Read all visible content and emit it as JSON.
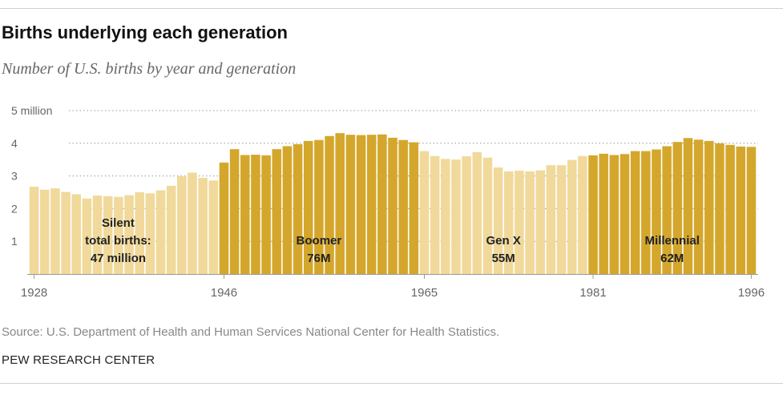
{
  "header": {
    "title": "Births underlying each generation",
    "subtitle": "Number of U.S. births by year and generation"
  },
  "footer": {
    "source": "Source: U.S. Department of Health and Human Services National Center for Health Statistics.",
    "org": "PEW RESEARCH CENTER"
  },
  "chart_data": {
    "type": "bar",
    "title": "Births underlying each generation",
    "subtitle": "Number of U.S. births by year and generation",
    "ylim": [
      0,
      5
    ],
    "y_ticks": [
      {
        "value": 1,
        "label": "1"
      },
      {
        "value": 2,
        "label": "2"
      },
      {
        "value": 3,
        "label": "3"
      },
      {
        "value": 4,
        "label": "4"
      },
      {
        "value": 5,
        "label": "5 million"
      }
    ],
    "x_tick_years": [
      {
        "year": 1928,
        "label": "1928"
      },
      {
        "year": 1946,
        "label": "1946"
      },
      {
        "year": 1965,
        "label": "1965"
      },
      {
        "year": 1981,
        "label": "1981"
      },
      {
        "year": 1996,
        "label": "1996"
      }
    ],
    "grid": "horizontal dotted",
    "colors": {
      "light": "#f0d99a",
      "dark": "#d4a72c",
      "axis": "#999999",
      "grid": "#999999"
    },
    "generations": [
      {
        "name": "Silent",
        "start": 1928,
        "end": 1945,
        "shade": "light",
        "label_lines": [
          "Silent",
          "total births:",
          "47 million"
        ]
      },
      {
        "name": "Boomer",
        "start": 1946,
        "end": 1964,
        "shade": "dark",
        "label_lines": [
          "Boomer",
          "76M"
        ]
      },
      {
        "name": "Gen X",
        "start": 1965,
        "end": 1980,
        "shade": "light",
        "label_lines": [
          "Gen X",
          "55M"
        ]
      },
      {
        "name": "Millennial",
        "start": 1981,
        "end": 1996,
        "shade": "dark",
        "label_lines": [
          "Millennial",
          "62M"
        ]
      }
    ],
    "years": [
      1928,
      1929,
      1930,
      1931,
      1932,
      1933,
      1934,
      1935,
      1936,
      1937,
      1938,
      1939,
      1940,
      1941,
      1942,
      1943,
      1944,
      1945,
      1946,
      1947,
      1948,
      1949,
      1950,
      1951,
      1952,
      1953,
      1954,
      1955,
      1956,
      1957,
      1958,
      1959,
      1960,
      1961,
      1962,
      1963,
      1964,
      1965,
      1966,
      1967,
      1968,
      1969,
      1970,
      1971,
      1972,
      1973,
      1974,
      1975,
      1976,
      1977,
      1978,
      1979,
      1980,
      1981,
      1982,
      1983,
      1984,
      1985,
      1986,
      1987,
      1988,
      1989,
      1990,
      1991,
      1992,
      1993,
      1994,
      1995,
      1996
    ],
    "values": [
      2.67,
      2.58,
      2.62,
      2.51,
      2.44,
      2.31,
      2.4,
      2.38,
      2.36,
      2.41,
      2.5,
      2.47,
      2.56,
      2.7,
      2.99,
      3.1,
      2.94,
      2.86,
      3.41,
      3.82,
      3.64,
      3.65,
      3.63,
      3.82,
      3.91,
      3.97,
      4.07,
      4.1,
      4.22,
      4.31,
      4.26,
      4.25,
      4.26,
      4.27,
      4.17,
      4.1,
      4.03,
      3.76,
      3.61,
      3.52,
      3.5,
      3.6,
      3.73,
      3.56,
      3.26,
      3.14,
      3.16,
      3.14,
      3.17,
      3.33,
      3.33,
      3.49,
      3.61,
      3.63,
      3.68,
      3.64,
      3.67,
      3.76,
      3.76,
      3.81,
      3.91,
      4.04,
      4.16,
      4.11,
      4.07,
      4.0,
      3.95,
      3.9,
      3.89
    ]
  }
}
